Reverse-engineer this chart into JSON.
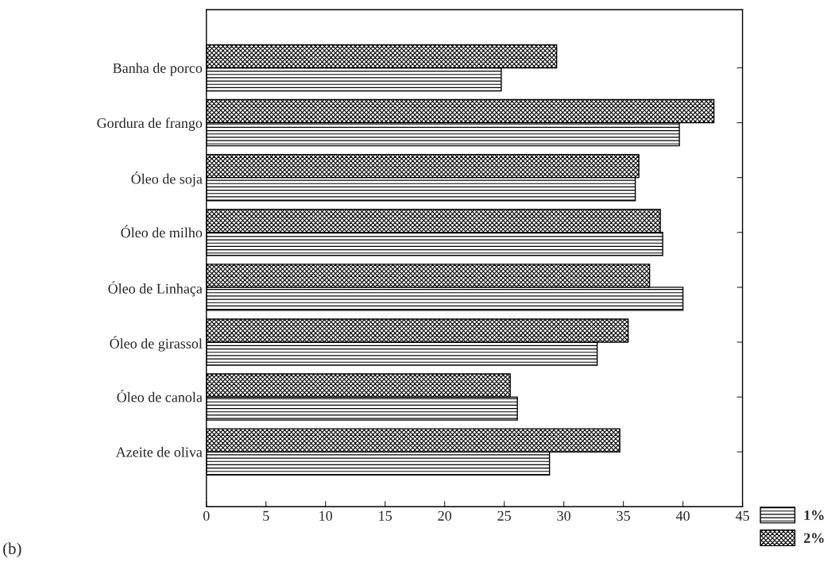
{
  "chart_data": {
    "type": "bar",
    "orientation": "horizontal",
    "categories": [
      "Banha de porco",
      "Gordura de frango",
      "Óleo de soja",
      "Óleo de milho",
      "Óleo de Linhaça",
      "Óleo de girassol",
      "Óleo de canola",
      "Azeite de oliva"
    ],
    "series": [
      {
        "name": "1%",
        "color": "#000000",
        "values": [
          24.75,
          39.7,
          36.0,
          38.3,
          40.0,
          32.8,
          26.1,
          28.8
        ]
      },
      {
        "name": "2%",
        "color": "#000000",
        "values": [
          29.4,
          42.6,
          36.3,
          38.1,
          37.2,
          35.4,
          25.5,
          34.7
        ]
      }
    ],
    "xlim": [
      0,
      45
    ],
    "xticks": [
      0,
      5,
      10,
      15,
      20,
      25,
      30,
      35,
      40,
      45
    ],
    "legend": "bottom right",
    "grid": false,
    "annotations": [
      "(b)"
    ]
  }
}
